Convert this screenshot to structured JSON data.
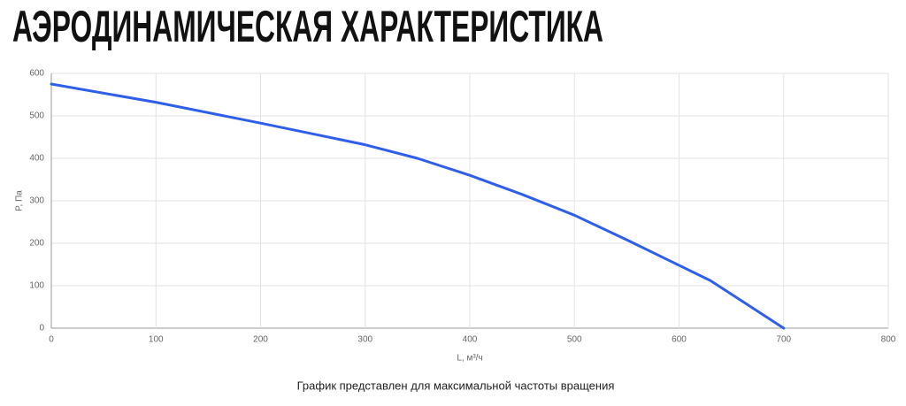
{
  "chart_data": {
    "type": "line",
    "title": "АЭРОДИНАМИЧЕСКАЯ ХАРАКТЕРИСТИКА",
    "x_label": "L, м³/ч",
    "y_label": "P, Па",
    "note": "График представлен для максимальной частоты вращения",
    "x": [
      0,
      100,
      200,
      300,
      350,
      400,
      450,
      500,
      550,
      600,
      630,
      660,
      700
    ],
    "values": [
      575,
      532,
      483,
      432,
      400,
      360,
      315,
      266,
      208,
      148,
      112,
      64,
      0
    ],
    "color": "#2f5fe8",
    "xlim": [
      0,
      800
    ],
    "xticks": [
      0,
      100,
      200,
      300,
      400,
      500,
      600,
      700,
      800
    ],
    "ylim": [
      0,
      600
    ],
    "yticks": [
      0,
      100,
      200,
      300,
      400,
      500,
      600
    ],
    "grid": true
  }
}
